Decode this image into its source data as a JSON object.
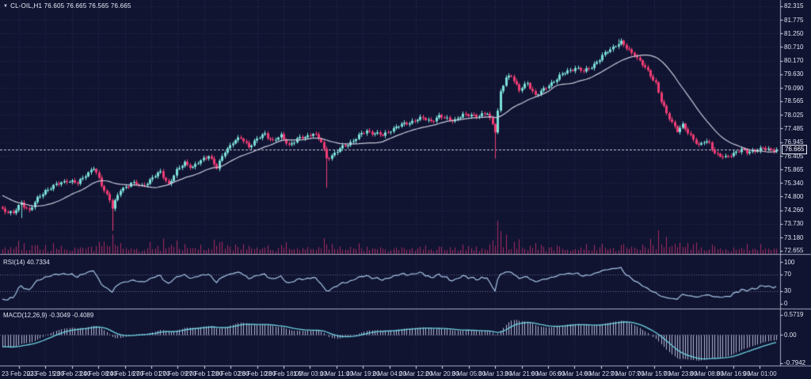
{
  "window": {
    "collapse_marker": "▼",
    "symbol_line": "CL-OIL,H1 76.605 76.665 76.565 76.665"
  },
  "colors": {
    "background": "#101431",
    "grid": "#2b3055",
    "bull_candle": "#7ce0d8",
    "bear_candle": "#f23c74",
    "ma_line": "#c9c9da",
    "volume": "#a82b62",
    "rsi_line": "#a9c7e9",
    "rsi_levels": "#6a6f95",
    "macd_signal": "#6fd4e4",
    "macd_histogram": "#b6b9d4",
    "separator": "#a6aac2",
    "axis_text": "#dfe1ee",
    "price_line": "#c8c9da"
  },
  "price_axis": {
    "labels": [
      "82.315",
      "81.775",
      "81.250",
      "80.710",
      "80.170",
      "79.630",
      "79.090",
      "78.565",
      "78.025",
      "77.485",
      "76.945",
      "76.405",
      "75.865",
      "75.340",
      "74.800",
      "74.260",
      "73.730",
      "73.180",
      "72.655"
    ],
    "current": "76.665"
  },
  "time_axis": {
    "labels": [
      "23 Feb 2023",
      "23 Feb 15:00",
      "23 Feb 23:00",
      "24 Feb 08:00",
      "24 Feb 16:00",
      "27 Feb 01:00",
      "27 Feb 09:00",
      "27 Feb 17:00",
      "28 Feb 02:00",
      "28 Feb 10:00",
      "28 Feb 18:00",
      "1 Mar 03:00",
      "1 Mar 11:00",
      "1 Mar 19:00",
      "2 Mar 04:00",
      "2 Mar 12:00",
      "2 Mar 20:00",
      "3 Mar 05:00",
      "3 Mar 13:00",
      "3 Mar 21:00",
      "6 Mar 06:00",
      "6 Mar 14:00",
      "6 Mar 22:00",
      "7 Mar 07:00",
      "7 Mar 15:00",
      "7 Mar 23:00",
      "8 Mar 08:00",
      "8 Mar 16:00",
      "9 Mar 01:00"
    ]
  },
  "panels": {
    "rsi": {
      "label": "RSI(14) 40.7334",
      "scale_labels": [
        "100",
        "70",
        "30",
        "0"
      ],
      "scale_values": [
        100,
        70,
        30,
        0
      ],
      "levels": [
        70,
        30
      ]
    },
    "macd": {
      "label": "MACD(12,26,9) -0.3049 -0.4089",
      "scale_labels": [
        "0.5719",
        "0.00",
        "-0.7942"
      ],
      "scale_values": [
        0.5719,
        0.0,
        -0.7942
      ]
    }
  },
  "chart_data": {
    "type": "candlestick",
    "title": "CL-OIL,H1",
    "symbol": "CL-OIL",
    "timeframe": "H1",
    "current_ohlc": {
      "open": 76.605,
      "high": 76.665,
      "low": 76.565,
      "close": 76.665
    },
    "price_range": {
      "min": 72.561,
      "max": 82.565
    },
    "rsi_range": [
      0,
      100
    ],
    "macd_range": [
      -0.7942,
      0.5719
    ],
    "candle_count": 290,
    "close_anchors": [
      [
        0,
        74.3
      ],
      [
        4,
        74.12
      ],
      [
        7,
        74.55
      ],
      [
        10,
        74.25
      ],
      [
        13,
        74.7
      ],
      [
        16,
        75.05
      ],
      [
        20,
        75.25
      ],
      [
        24,
        75.45
      ],
      [
        28,
        75.3
      ],
      [
        31,
        75.68
      ],
      [
        34,
        75.92
      ],
      [
        37,
        75.25
      ],
      [
        40,
        74.7
      ],
      [
        41,
        74.35
      ],
      [
        44,
        75.05
      ],
      [
        48,
        75.35
      ],
      [
        52,
        75.2
      ],
      [
        56,
        75.55
      ],
      [
        59,
        75.75
      ],
      [
        62,
        75.3
      ],
      [
        65,
        75.8
      ],
      [
        68,
        76.15
      ],
      [
        71,
        75.95
      ],
      [
        74,
        76.2
      ],
      [
        77,
        76.45
      ],
      [
        80,
        75.9
      ],
      [
        83,
        76.6
      ],
      [
        86,
        76.95
      ],
      [
        89,
        77.1
      ],
      [
        92,
        76.8
      ],
      [
        95,
        77.05
      ],
      [
        98,
        77.28
      ],
      [
        101,
        77.0
      ],
      [
        104,
        77.18
      ],
      [
        107,
        76.85
      ],
      [
        110,
        77.05
      ],
      [
        113,
        77.15
      ],
      [
        116,
        77.32
      ],
      [
        119,
        76.95
      ],
      [
        121,
        76.32
      ],
      [
        124,
        76.5
      ],
      [
        127,
        76.75
      ],
      [
        130,
        76.95
      ],
      [
        133,
        77.18
      ],
      [
        136,
        77.4
      ],
      [
        139,
        77.3
      ],
      [
        142,
        77.2
      ],
      [
        145,
        77.45
      ],
      [
        148,
        77.58
      ],
      [
        151,
        77.7
      ],
      [
        154,
        77.82
      ],
      [
        157,
        77.88
      ],
      [
        160,
        77.8
      ],
      [
        163,
        77.95
      ],
      [
        166,
        77.88
      ],
      [
        169,
        77.82
      ],
      [
        172,
        78.0
      ],
      [
        175,
        78.06
      ],
      [
        178,
        77.95
      ],
      [
        181,
        78.1
      ],
      [
        183,
        77.7
      ],
      [
        184,
        77.4
      ],
      [
        186,
        78.9
      ],
      [
        188,
        79.48
      ],
      [
        190,
        79.62
      ],
      [
        193,
        78.98
      ],
      [
        196,
        79.28
      ],
      [
        199,
        78.82
      ],
      [
        202,
        79.0
      ],
      [
        205,
        79.3
      ],
      [
        208,
        79.55
      ],
      [
        211,
        79.75
      ],
      [
        214,
        79.9
      ],
      [
        217,
        79.72
      ],
      [
        220,
        79.95
      ],
      [
        223,
        80.22
      ],
      [
        226,
        80.55
      ],
      [
        229,
        80.8
      ],
      [
        231,
        80.88
      ],
      [
        233,
        80.65
      ],
      [
        236,
        80.42
      ],
      [
        239,
        80.0
      ],
      [
        242,
        79.6
      ],
      [
        244,
        79.3
      ],
      [
        246,
        78.55
      ],
      [
        248,
        78.05
      ],
      [
        250,
        77.75
      ],
      [
        252,
        77.42
      ],
      [
        254,
        77.6
      ],
      [
        256,
        77.3
      ],
      [
        258,
        77.1
      ],
      [
        260,
        76.82
      ],
      [
        262,
        76.95
      ],
      [
        264,
        76.9
      ],
      [
        266,
        76.55
      ],
      [
        268,
        76.4
      ],
      [
        270,
        76.32
      ],
      [
        272,
        76.45
      ],
      [
        274,
        76.6
      ],
      [
        276,
        76.65
      ],
      [
        278,
        76.52
      ],
      [
        280,
        76.62
      ],
      [
        282,
        76.66
      ],
      [
        284,
        76.7
      ],
      [
        286,
        76.63
      ],
      [
        289,
        76.665
      ]
    ],
    "warmup_anchors": [
      [
        -40,
        76.5
      ],
      [
        -32,
        76.1
      ],
      [
        -24,
        75.6
      ],
      [
        -16,
        75.1
      ],
      [
        -8,
        74.7
      ],
      [
        -1,
        74.38
      ]
    ],
    "special_wicks": [
      {
        "i": 7,
        "low": 73.95
      },
      {
        "i": 41,
        "low": 73.45
      },
      {
        "i": 121,
        "low": 75.15
      },
      {
        "i": 184,
        "low": 76.3
      },
      {
        "i": 230,
        "high": 81.02
      }
    ],
    "indicators": {
      "ma_period": 22,
      "rsi_period": 14,
      "rsi_last": 40.7334,
      "macd_params": [
        12,
        26,
        9
      ],
      "macd_last": [
        -0.3049,
        -0.4089
      ]
    },
    "render": {
      "noise": [
        [
          0.05,
          1.93,
          0
        ],
        [
          0.04,
          0.83,
          2
        ]
      ],
      "wick_amp": 0.1,
      "vol_base": 2.5,
      "vol_gain": 40,
      "vol_max": 42
    }
  }
}
